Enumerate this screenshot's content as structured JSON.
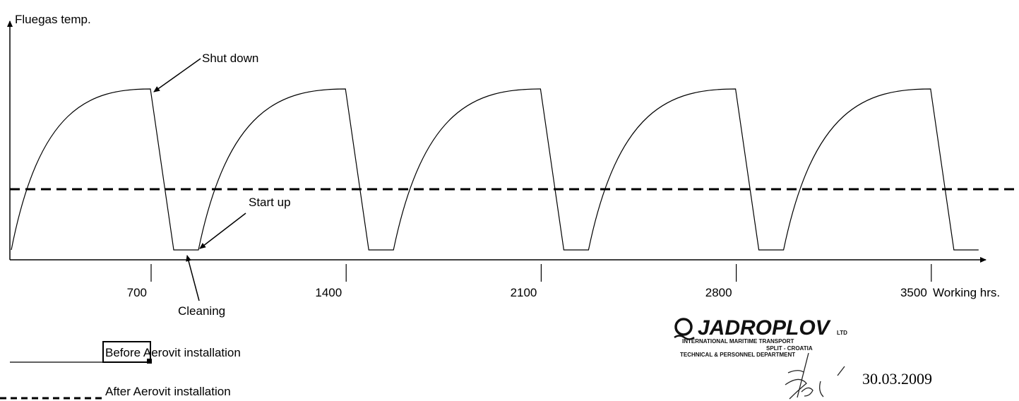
{
  "chart_data": {
    "type": "line",
    "ylabel": "Fluegas temp.",
    "xlabel": "Working hrs.",
    "x_ticks": [
      700,
      1400,
      2100,
      2800,
      3500
    ],
    "x_tick_labels": [
      "700",
      "1400",
      "2100",
      "2800",
      "3500"
    ],
    "xlim": [
      0,
      3500
    ],
    "series": [
      {
        "name": "Before Aerovit installation",
        "style": "solid",
        "description_points": [
          {
            "x": 0,
            "y": 0.0
          },
          {
            "x": 700,
            "y": 1.0
          },
          {
            "x": 1400,
            "y": 1.0
          },
          {
            "x": 2100,
            "y": 1.0
          },
          {
            "x": 2800,
            "y": 1.0
          },
          {
            "x": 3500,
            "y": 1.0
          }
        ],
        "cycle_hours": 700
      },
      {
        "name": "After Aerovit installation",
        "style": "dashed",
        "description_points": [
          {
            "x": 0,
            "y": 0.39
          },
          {
            "x": 3500,
            "y": 0.39
          }
        ]
      }
    ],
    "annotations": [
      "Shut down",
      "Start up",
      "Cleaning"
    ]
  },
  "legend": {
    "before_label": "Before Aerovit installation",
    "before_highlight": "Before",
    "before_rest": " Aerovit installation",
    "after_label": "After Aerovit installation"
  },
  "logo": {
    "name": "JADROPLOV",
    "suffix": "LTD",
    "line1": "INTERNATIONAL MARITIME TRANSPORT",
    "line2": "SPLIT - CROATIA",
    "line3": "TECHNICAL & PERSONNEL DEPARTMENT"
  },
  "date": "30.03.2009",
  "colors": {
    "line": "#000000",
    "background": "#ffffff"
  }
}
